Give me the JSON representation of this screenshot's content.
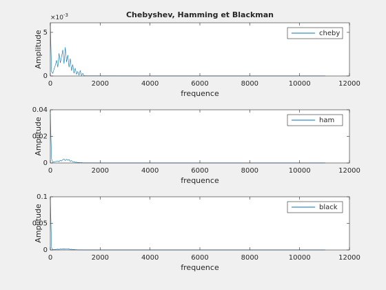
{
  "chart_data": [
    {
      "type": "line",
      "title": "Chebyshev, Hamming et Blackman",
      "xlabel": "frequence",
      "ylabel": "Amplitude",
      "y_scale_base": "×10",
      "y_scale_exponent": "-3",
      "x": [
        0,
        50,
        100,
        150,
        200,
        250,
        300,
        350,
        400,
        450,
        500,
        550,
        600,
        650,
        700,
        750,
        800,
        850,
        900,
        950,
        1000,
        1050,
        1100,
        1150,
        1200,
        1250,
        1300,
        1350,
        1400,
        2000,
        4000,
        6000,
        8000,
        10000,
        11025
      ],
      "series": [
        {
          "name": "cheby",
          "color": "#0072bd",
          "values": [
            6.1,
            0.5,
            0.3,
            0.8,
            1.2,
            1.8,
            1.0,
            2.6,
            1.5,
            2.2,
            3.0,
            1.4,
            3.3,
            1.6,
            2.4,
            1.0,
            2.0,
            0.6,
            1.3,
            0.3,
            0.9,
            0.2,
            0.5,
            0.1,
            0.6,
            0.05,
            0.3,
            0.05,
            0.02,
            0.02,
            0.01,
            0.01,
            0.01,
            0.01,
            0.01
          ]
        }
      ],
      "xlim": [
        0,
        12000
      ],
      "xticks": [
        0,
        2000,
        4000,
        6000,
        8000,
        10000,
        12000
      ],
      "ylim": [
        0,
        6.1
      ],
      "yticks": [
        0,
        5
      ],
      "legend": "northeast"
    },
    {
      "type": "line",
      "xlabel": "frequence",
      "ylabel": "Amplitude",
      "x": [
        0,
        50,
        100,
        150,
        200,
        250,
        300,
        350,
        400,
        450,
        500,
        550,
        600,
        650,
        700,
        750,
        800,
        850,
        900,
        950,
        1000,
        1050,
        1100,
        1150,
        1200,
        1250,
        1300,
        1350,
        1400,
        2000,
        4000,
        6000,
        8000,
        10000,
        11025
      ],
      "series": [
        {
          "name": "ham",
          "color": "#0072bd",
          "values": [
            0.037,
            0.003,
            0.0005,
            0.0008,
            0.001,
            0.0012,
            0.0015,
            0.001,
            0.002,
            0.0015,
            0.0025,
            0.003,
            0.0018,
            0.0028,
            0.002,
            0.0025,
            0.0012,
            0.0018,
            0.0008,
            0.001,
            0.0005,
            0.0006,
            0.0003,
            0.0004,
            0.0002,
            0.0003,
            0.0001,
            0.0001,
            0.0001,
            5e-05,
            5e-05,
            5e-05,
            5e-05,
            5e-05,
            5e-05
          ]
        }
      ],
      "xlim": [
        0,
        12000
      ],
      "xticks": [
        0,
        2000,
        4000,
        6000,
        8000,
        10000,
        12000
      ],
      "ylim": [
        0,
        0.04
      ],
      "yticks": [
        0,
        0.02,
        0.04
      ],
      "legend": "northeast"
    },
    {
      "type": "line",
      "xlabel": "frequence",
      "ylabel": "Amplitude",
      "x": [
        0,
        50,
        100,
        150,
        200,
        250,
        300,
        350,
        400,
        450,
        500,
        550,
        600,
        650,
        700,
        750,
        800,
        850,
        900,
        950,
        1000,
        1050,
        1100,
        1150,
        1200,
        1250,
        1300,
        1350,
        1400,
        2000,
        4000,
        6000,
        8000,
        10000,
        11025
      ],
      "series": [
        {
          "name": "black",
          "color": "#0072bd",
          "values": [
            0.1,
            0.004,
            0.0006,
            0.0008,
            0.001,
            0.0012,
            0.0015,
            0.001,
            0.0018,
            0.0014,
            0.002,
            0.0022,
            0.0016,
            0.0021,
            0.0017,
            0.0019,
            0.001,
            0.0014,
            0.0007,
            0.0009,
            0.0004,
            0.0005,
            0.0003,
            0.0003,
            0.0002,
            0.0002,
            0.0001,
            0.0001,
            0.0001,
            5e-05,
            5e-05,
            5e-05,
            5e-05,
            5e-05,
            5e-05
          ]
        }
      ],
      "xlim": [
        0,
        12000
      ],
      "xticks": [
        0,
        2000,
        4000,
        6000,
        8000,
        10000,
        12000
      ],
      "ylim": [
        0,
        0.1
      ],
      "yticks": [
        0,
        0.05,
        0.1
      ],
      "legend": "northeast"
    }
  ]
}
